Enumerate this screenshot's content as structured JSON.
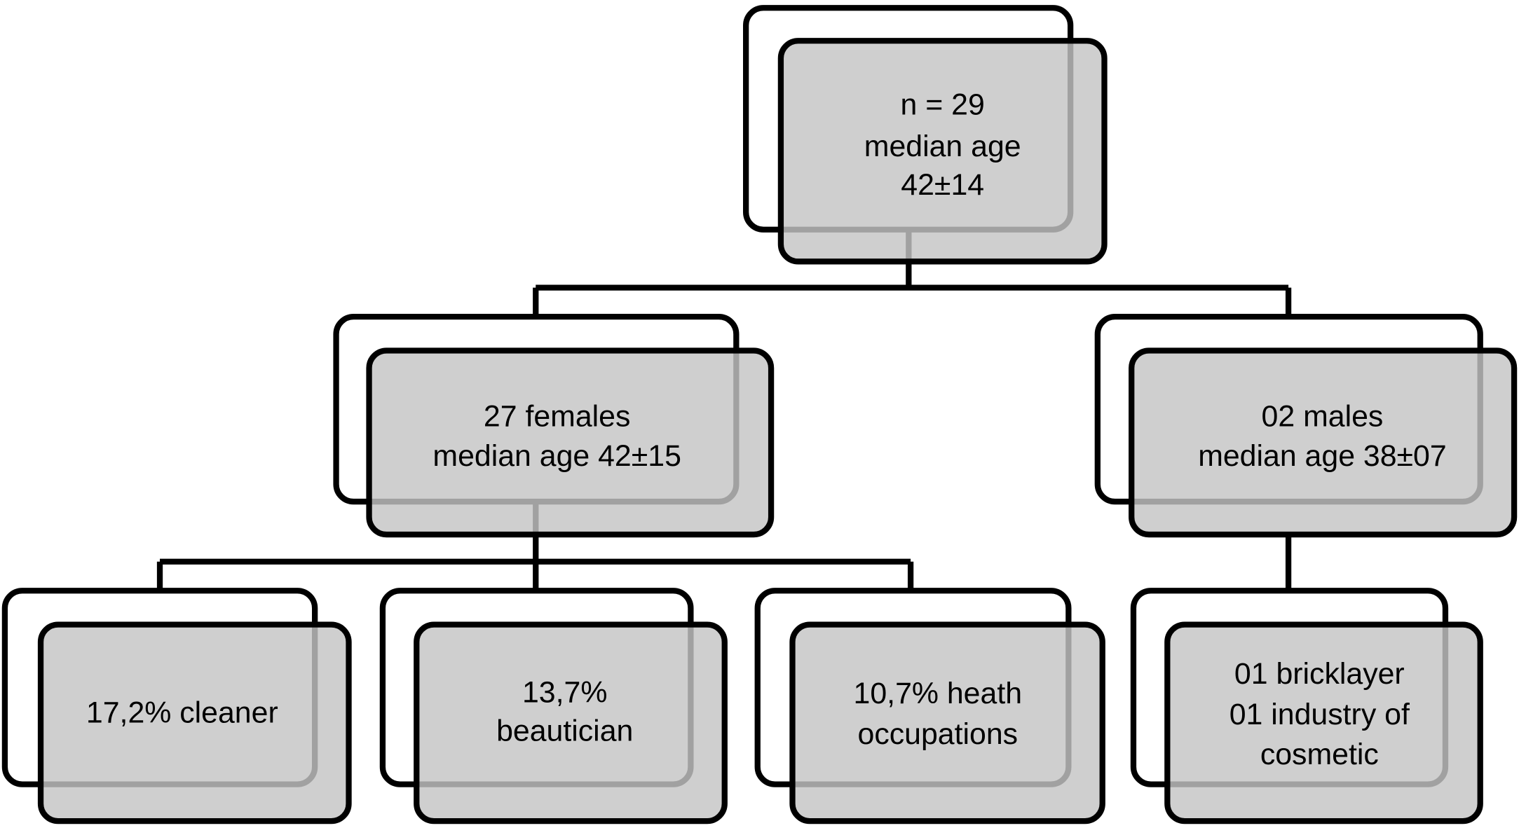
{
  "nodes": [
    {
      "lines": [
        "n = 29",
        "median age",
        "42±14"
      ]
    },
    {
      "lines": [
        "27 females",
        "median age 42±15"
      ]
    },
    {
      "lines": [
        "02 males",
        "median age 38±07"
      ]
    },
    {
      "lines": [
        "17,2% cleaner"
      ]
    },
    {
      "lines": [
        "13,7%",
        "beautician"
      ]
    },
    {
      "lines": [
        "10,7% heath",
        "occupations"
      ]
    },
    {
      "lines": [
        "01 bricklayer",
        "01 industry of",
        "cosmetic"
      ]
    }
  ]
}
